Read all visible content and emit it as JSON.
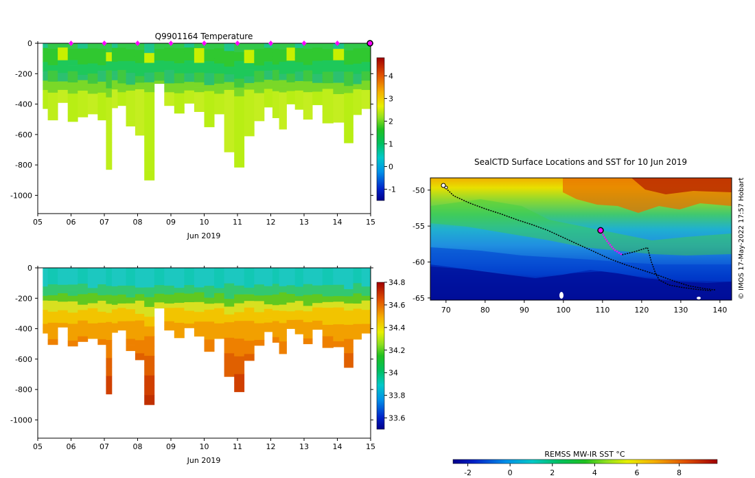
{
  "chart_data": [
    {
      "id": "temperature",
      "type": "heatmap",
      "title": "Q9901164  Temperature",
      "xlabel": "Jun 2019",
      "ylabel": "",
      "x_ticks": [
        "05",
        "06",
        "07",
        "08",
        "09",
        "10",
        "11",
        "12",
        "13",
        "14",
        "15"
      ],
      "x_range_days": [
        5,
        15
      ],
      "ylim": [
        -1120,
        0
      ],
      "y_ticks": [
        0,
        -200,
        -400,
        -600,
        -800,
        -1000
      ],
      "colorbar": {
        "min": -1.5,
        "max": 4.8,
        "ticks": [
          4,
          3,
          2,
          1,
          0,
          -1
        ]
      },
      "surface_marker_days": [
        6,
        7,
        8,
        9,
        10,
        11,
        12,
        13,
        14
      ],
      "current_marker_day": 14.98
    },
    {
      "id": "salinity",
      "type": "heatmap",
      "title": "",
      "xlabel": "Jun 2019",
      "ylabel": "",
      "x_ticks": [
        "05",
        "06",
        "07",
        "08",
        "09",
        "10",
        "11",
        "12",
        "13",
        "14",
        "15"
      ],
      "x_range_days": [
        5,
        15
      ],
      "ylim": [
        -1120,
        0
      ],
      "y_ticks": [
        0,
        -200,
        -400,
        -600,
        -800,
        -1000
      ],
      "colorbar": {
        "min": 33.5,
        "max": 34.8,
        "ticks": [
          34.8,
          34.6,
          34.4,
          34.2,
          34,
          33.8,
          33.6
        ]
      }
    },
    {
      "id": "map",
      "type": "heatmap",
      "title": "SealCTD Surface Locations and SST for 10 Jun 2019",
      "x_ticks": [
        70,
        80,
        90,
        100,
        110,
        120,
        130,
        140
      ],
      "xlim": [
        66,
        143
      ],
      "y_ticks": [
        -50,
        -55,
        -60,
        -65
      ],
      "ylim": [
        -65.3,
        -48.3
      ],
      "colorbar_label": "REMSS MW-IR SST °C",
      "colorbar": {
        "min": -2.7,
        "max": 9.8,
        "ticks": [
          -2,
          0,
          2,
          4,
          6,
          8
        ]
      },
      "side_note": "© IMOS 17-May-2022 17:57 Hobart",
      "current_position": {
        "lon": 109.5,
        "lat": -55.6
      }
    }
  ],
  "profiles": [
    {
      "t": 5.15,
      "d": 430
    },
    {
      "t": 5.45,
      "d": 505
    },
    {
      "t": 5.75,
      "d": 390
    },
    {
      "t": 6.05,
      "d": 515
    },
    {
      "t": 6.35,
      "d": 485
    },
    {
      "t": 6.65,
      "d": 465
    },
    {
      "t": 6.95,
      "d": 505
    },
    {
      "t": 7.15,
      "d": 830
    },
    {
      "t": 7.3,
      "d": 425
    },
    {
      "t": 7.5,
      "d": 410
    },
    {
      "t": 7.8,
      "d": 545
    },
    {
      "t": 8.05,
      "d": 605
    },
    {
      "t": 8.35,
      "d": 900
    },
    {
      "t": 8.65,
      "d": 265
    },
    {
      "t": 8.95,
      "d": 410
    },
    {
      "t": 9.25,
      "d": 460
    },
    {
      "t": 9.55,
      "d": 395
    },
    {
      "t": 9.85,
      "d": 450
    },
    {
      "t": 10.15,
      "d": 550
    },
    {
      "t": 10.45,
      "d": 465
    },
    {
      "t": 10.75,
      "d": 715
    },
    {
      "t": 11.05,
      "d": 815
    },
    {
      "t": 11.35,
      "d": 610
    },
    {
      "t": 11.65,
      "d": 510
    },
    {
      "t": 11.95,
      "d": 420
    },
    {
      "t": 12.15,
      "d": 490
    },
    {
      "t": 12.35,
      "d": 565
    },
    {
      "t": 12.6,
      "d": 400
    },
    {
      "t": 12.85,
      "d": 435
    },
    {
      "t": 13.1,
      "d": 500
    },
    {
      "t": 13.4,
      "d": 405
    },
    {
      "t": 13.7,
      "d": 525
    },
    {
      "t": 14.05,
      "d": 520
    },
    {
      "t": 14.35,
      "d": 655
    },
    {
      "t": 14.6,
      "d": 470
    },
    {
      "t": 14.85,
      "d": 430
    }
  ],
  "track": [
    [
      69.5,
      -49.5
    ],
    [
      72,
      -50.8
    ],
    [
      76,
      -51.8
    ],
    [
      80,
      -52.6
    ],
    [
      84,
      -53.3
    ],
    [
      88,
      -54.1
    ],
    [
      92,
      -54.8
    ],
    [
      96,
      -55.6
    ],
    [
      100,
      -56.6
    ],
    [
      104,
      -57.6
    ],
    [
      108,
      -58.6
    ],
    [
      112,
      -59.6
    ],
    [
      116,
      -60.4
    ],
    [
      120,
      -61.1
    ],
    [
      124,
      -61.8
    ],
    [
      128,
      -62.6
    ],
    [
      132,
      -63.3
    ],
    [
      136,
      -63.7
    ],
    [
      139,
      -63.9
    ]
  ],
  "recent_track": [
    [
      109.5,
      -55.6
    ],
    [
      111,
      -57
    ],
    [
      113,
      -58.3
    ],
    [
      115,
      -59
    ]
  ],
  "return_track": [
    [
      115,
      -59
    ],
    [
      118,
      -58.6
    ],
    [
      121.5,
      -58
    ],
    [
      122.5,
      -60
    ],
    [
      123.5,
      -61.5
    ],
    [
      124.5,
      -62.5
    ],
    [
      127,
      -63.2
    ],
    [
      130,
      -63.5
    ],
    [
      134,
      -63.8
    ],
    [
      138,
      -64
    ]
  ]
}
